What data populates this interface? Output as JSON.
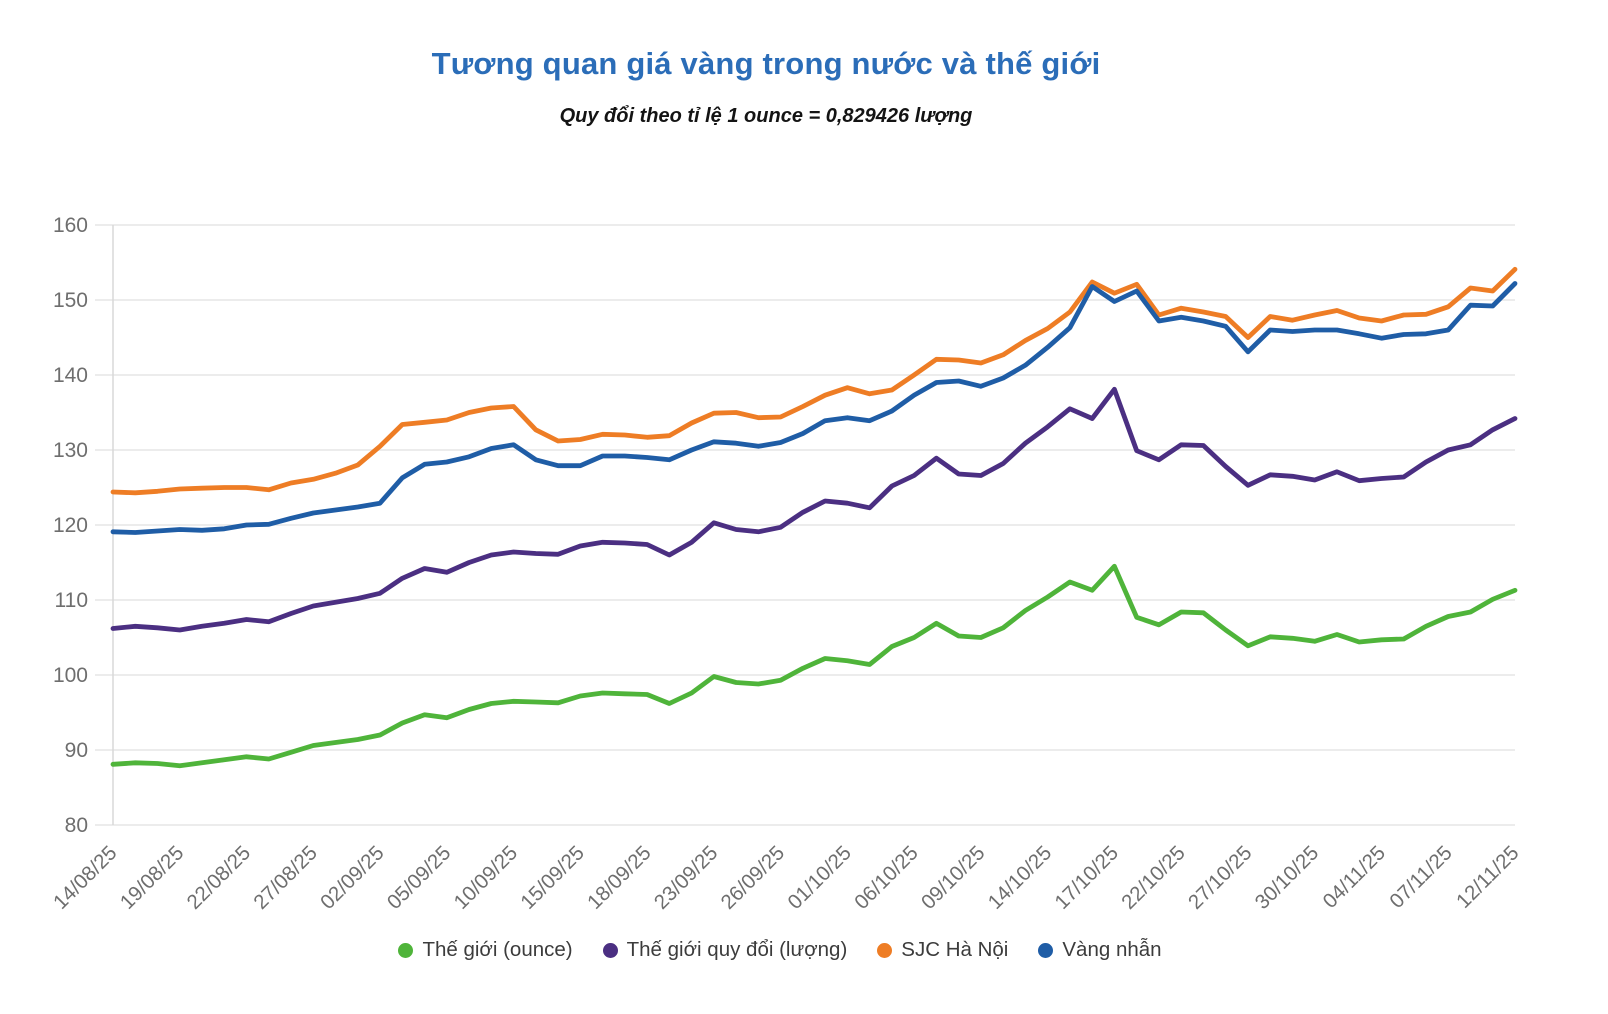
{
  "title": "Tương quan giá vàng trong nước và thế giới",
  "subtitle": "Quy đổi theo tỉ lệ 1 ounce = 0,829426 lượng",
  "colors": {
    "title_text": "#2b6db8",
    "subtitle_text": "#141414",
    "axis_text": "#6e6e6e",
    "legend_text": "#3c3c3c",
    "gridline": "#e6e6e6",
    "axis_line": "#d8d8d8",
    "background": "#ffffff"
  },
  "chart_data": {
    "type": "line",
    "title": "Tương quan giá vàng trong nước và thế giới",
    "subtitle": "Quy đổi theo tỉ lệ 1 ounce = 0,829426 lượng",
    "xlabel": "",
    "ylabel": "",
    "ylim": [
      80,
      160
    ],
    "ytick_step": 10,
    "yticks": [
      80,
      90,
      100,
      110,
      120,
      130,
      140,
      150,
      160
    ],
    "grid": "horizontal",
    "legend_position": "bottom",
    "x_labels": [
      "14/08/25",
      "19/08/25",
      "22/08/25",
      "27/08/25",
      "02/09/25",
      "05/09/25",
      "10/09/25",
      "15/09/25",
      "18/09/25",
      "23/09/25",
      "26/09/25",
      "01/10/25",
      "06/10/25",
      "09/10/25",
      "14/10/25",
      "17/10/25",
      "22/10/25",
      "27/10/25",
      "30/10/25",
      "04/11/25",
      "07/11/25",
      "12/11/25"
    ],
    "label_every": 3,
    "n_points": 64,
    "series": [
      {
        "name": "Thế giới (ounce)",
        "color": "#4fb43a",
        "values": [
          88.1,
          88.3,
          88.2,
          87.9,
          88.3,
          88.7,
          89.1,
          88.8,
          89.7,
          90.6,
          91.0,
          91.4,
          92.0,
          93.6,
          94.7,
          94.3,
          95.4,
          96.2,
          96.5,
          96.4,
          96.3,
          97.2,
          97.6,
          97.5,
          97.4,
          96.2,
          97.6,
          99.8,
          99.0,
          98.8,
          99.3,
          100.9,
          102.2,
          101.9,
          101.4,
          103.8,
          105.0,
          106.9,
          105.2,
          105.0,
          106.3,
          108.6,
          110.4,
          112.4,
          111.3,
          114.5,
          107.7,
          106.7,
          108.4,
          108.3,
          106.0,
          103.9,
          105.1,
          104.9,
          104.5,
          105.4,
          104.4,
          104.7,
          104.8,
          106.5,
          107.8,
          108.4,
          110.1,
          111.3
        ]
      },
      {
        "name": "Thế giới quy đổi (lượng)",
        "color": "#4b2f82",
        "values": [
          106.2,
          106.5,
          106.3,
          106.0,
          106.5,
          106.9,
          107.4,
          107.1,
          108.2,
          109.2,
          109.7,
          110.2,
          110.9,
          112.9,
          114.2,
          113.7,
          115.0,
          116.0,
          116.4,
          116.2,
          116.1,
          117.2,
          117.7,
          117.6,
          117.4,
          116.0,
          117.7,
          120.3,
          119.4,
          119.1,
          119.7,
          121.7,
          123.2,
          122.9,
          122.3,
          125.2,
          126.6,
          128.9,
          126.8,
          126.6,
          128.2,
          130.9,
          133.1,
          135.5,
          134.2,
          138.1,
          129.9,
          128.7,
          130.7,
          130.6,
          127.8,
          125.3,
          126.7,
          126.5,
          126.0,
          127.1,
          125.9,
          126.2,
          126.4,
          128.4,
          130.0,
          130.7,
          132.7,
          134.2
        ]
      },
      {
        "name": "SJC Hà Nội",
        "color": "#ee7d25",
        "values": [
          124.4,
          124.3,
          124.5,
          124.8,
          124.9,
          125.0,
          125.0,
          124.7,
          125.6,
          126.1,
          126.9,
          128.0,
          130.5,
          133.4,
          133.7,
          134.0,
          135.0,
          135.6,
          135.8,
          132.7,
          131.2,
          131.4,
          132.1,
          132.0,
          131.7,
          131.9,
          133.6,
          134.9,
          135.0,
          134.3,
          134.4,
          135.8,
          137.3,
          138.3,
          137.5,
          138.0,
          140.0,
          142.1,
          142.0,
          141.6,
          142.7,
          144.6,
          146.2,
          148.4,
          152.4,
          150.9,
          152.1,
          148.0,
          148.9,
          148.4,
          147.8,
          145.0,
          147.8,
          147.3,
          148.0,
          148.6,
          147.6,
          147.2,
          148.0,
          148.1,
          149.1,
          151.6,
          151.2,
          154.1
        ]
      },
      {
        "name": "Vàng nhẫn",
        "color": "#1f5da6",
        "values": [
          119.1,
          119.0,
          119.2,
          119.4,
          119.3,
          119.5,
          120.0,
          120.1,
          120.9,
          121.6,
          122.0,
          122.4,
          122.9,
          126.3,
          128.1,
          128.4,
          129.1,
          130.2,
          130.7,
          128.7,
          127.9,
          127.9,
          129.2,
          129.2,
          129.0,
          128.7,
          130.0,
          131.1,
          130.9,
          130.5,
          131.0,
          132.2,
          133.9,
          134.3,
          133.9,
          135.2,
          137.3,
          139.0,
          139.2,
          138.5,
          139.6,
          141.3,
          143.7,
          146.3,
          151.8,
          149.8,
          151.2,
          147.2,
          147.7,
          147.2,
          146.5,
          143.1,
          146.0,
          145.8,
          146.0,
          146.0,
          145.5,
          144.9,
          145.4,
          145.5,
          146.0,
          149.3,
          149.2,
          152.2
        ]
      }
    ]
  }
}
